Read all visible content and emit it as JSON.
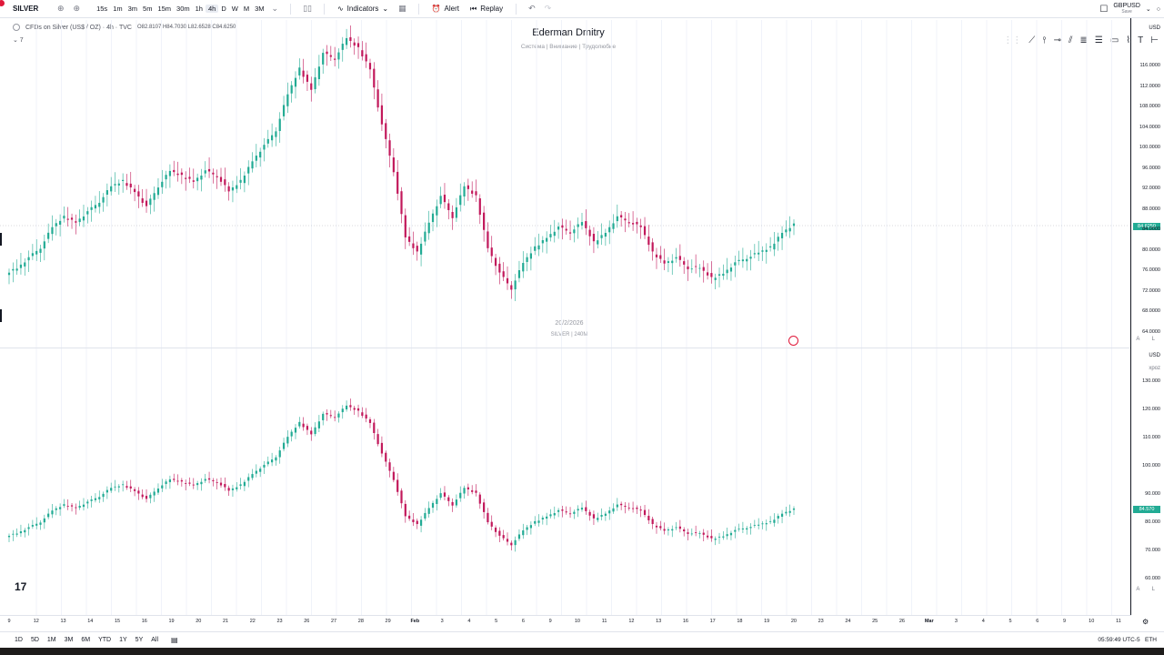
{
  "toolbar": {
    "symbol": "SILVER",
    "timeframes": [
      "15s",
      "1m",
      "3m",
      "5m",
      "15m",
      "30m",
      "1h",
      "4h",
      "D",
      "W",
      "M",
      "3M"
    ],
    "active_timeframe": "4h",
    "indicators_label": "Indicators",
    "alert_label": "Alert",
    "replay_label": "Replay",
    "right_symbol": "GBPUSD",
    "right_symbol_sub": "Save"
  },
  "legend": {
    "title": "CFDs on Silver (US$ / OZ) · 4h · TVC",
    "ohlc": "O82.8107 H84.7030 L82.6528 C84.6250",
    "indicator_toggle": "⌄ 7"
  },
  "watermark": {
    "title": "Ederman Dmitry",
    "subtitle": "Система  |  Внимание  |  Трудолюбие",
    "date": "20/2/2026",
    "symbol_tf": "SILVER | 240M"
  },
  "upper_axis": {
    "currency": "USD",
    "labels": [
      "116.0000",
      "112.0000",
      "108.0000",
      "104.0000",
      "100.0000",
      "96.0000",
      "92.0000",
      "88.0000",
      "84.0000",
      "80.0000",
      "76.0000",
      "72.0000",
      "68.0000",
      "64.0000"
    ],
    "current_price": "84.6250",
    "al": "A L"
  },
  "lower_axis": {
    "currency": "USD",
    "sub": "xpoz",
    "labels": [
      "130.000",
      "120.000",
      "110.000",
      "100.000",
      "90.000",
      "80.000",
      "70.000",
      "60.000"
    ],
    "current_price": "84.570",
    "al": "A L"
  },
  "time_axis": [
    "9",
    "12",
    "13",
    "14",
    "15",
    "16",
    "19",
    "20",
    "21",
    "22",
    "23",
    "26",
    "27",
    "28",
    "29",
    "Feb",
    "3",
    "4",
    "5",
    "6",
    "9",
    "10",
    "11",
    "12",
    "13",
    "16",
    "17",
    "18",
    "19",
    "20",
    "23",
    "24",
    "25",
    "26",
    "Mar",
    "3",
    "4",
    "5",
    "6",
    "9",
    "10",
    "11"
  ],
  "bottombar": {
    "ranges": [
      "1D",
      "5D",
      "1M",
      "3M",
      "6M",
      "YTD",
      "1Y",
      "5Y",
      "All"
    ],
    "clock": "05:59:49 UTC-5",
    "session": "ETH"
  },
  "colors": {
    "up": "#22ab94",
    "down": "#c2185b",
    "grid": "#f0f3fa"
  },
  "chart_data": {
    "type": "candlestick",
    "series_close": [
      75,
      76,
      78,
      80,
      84,
      86,
      85,
      87,
      89,
      92,
      93,
      91,
      88,
      92,
      95,
      94,
      93,
      95,
      94,
      91,
      93,
      97,
      100,
      103,
      110,
      115,
      111,
      118,
      117,
      121,
      119,
      115,
      104,
      95,
      82,
      79,
      85,
      90,
      86,
      92,
      90,
      80,
      75,
      72,
      77,
      80,
      82,
      84,
      83,
      85,
      81,
      83,
      86,
      85,
      84,
      79,
      77,
      78,
      76,
      76,
      74,
      75,
      77,
      78,
      79,
      80,
      83,
      84.6
    ]
  }
}
